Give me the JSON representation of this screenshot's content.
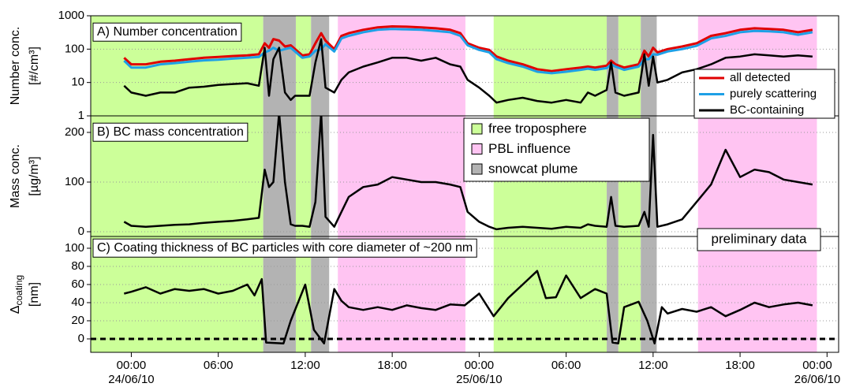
{
  "chart_data": {
    "type": "line",
    "grid": true,
    "xlim": [
      -2.8,
      48.8
    ],
    "xticks": [
      {
        "value": 0,
        "label": "00:00"
      },
      {
        "value": 6,
        "label": "06:00"
      },
      {
        "value": 12,
        "label": "12:00"
      },
      {
        "value": 18,
        "label": "18:00"
      },
      {
        "value": 24,
        "label": "00:00"
      },
      {
        "value": 30,
        "label": "06:00"
      },
      {
        "value": 36,
        "label": "12:00"
      },
      {
        "value": 42,
        "label": "18:00"
      },
      {
        "value": 48,
        "label": "00:00"
      }
    ],
    "date_labels": [
      {
        "value": 0,
        "label": "24/06/10"
      },
      {
        "value": 24,
        "label": "25/06/10"
      },
      {
        "value": 48,
        "label": "26/06/10"
      }
    ],
    "regions": [
      {
        "name": "free troposphere",
        "color": "#ccff99",
        "spans": [
          [
            -2.8,
            9.1
          ],
          [
            11.35,
            12.4
          ],
          [
            25.0,
            32.8
          ],
          [
            33.6,
            35.15
          ]
        ]
      },
      {
        "name": "PBL influence",
        "color": "#ffc4f2",
        "spans": [
          [
            14.25,
            23.05
          ],
          [
            39.1,
            47.3
          ]
        ]
      },
      {
        "name": "snowcat plume",
        "color": "#b3b3b3",
        "spans": [
          [
            9.1,
            11.35
          ],
          [
            12.4,
            13.65
          ],
          [
            32.8,
            33.6
          ],
          [
            35.15,
            36.25
          ]
        ]
      }
    ],
    "annotation": "preliminary data",
    "panels": [
      {
        "title": "A) Number concentration",
        "ylabel": {
          "text": "Number conc.",
          "unit": "[#/cm³]"
        },
        "log": true,
        "ylim": [
          1,
          1000
        ],
        "yticks": [
          1,
          10,
          100,
          1000
        ],
        "x": [
          -0.5,
          0,
          1,
          2,
          3,
          4,
          5,
          6,
          7,
          8,
          8.8,
          9.2,
          9.5,
          9.8,
          10.2,
          10.6,
          11,
          11.3,
          11.8,
          12.3,
          12.7,
          13.1,
          13.4,
          14,
          14.5,
          15,
          16,
          17,
          18,
          19,
          20,
          21,
          22,
          22.7,
          23.2,
          24,
          24.7,
          25.2,
          26,
          27,
          28,
          29,
          30,
          31,
          31.5,
          32,
          32.8,
          33.1,
          33.4,
          34,
          35,
          35.4,
          35.7,
          36,
          36.3,
          37,
          38,
          39,
          40,
          41,
          42,
          43,
          44,
          45,
          46,
          47
        ],
        "series": [
          {
            "name": "all detected",
            "color": "#e00000",
            "values": [
              55,
              35,
              35,
              42,
              45,
              50,
              55,
              58,
              62,
              65,
              70,
              150,
              110,
              200,
              180,
              120,
              130,
              100,
              65,
              70,
              150,
              300,
              180,
              100,
              250,
              300,
              380,
              450,
              480,
              470,
              450,
              420,
              380,
              300,
              150,
              110,
              95,
              60,
              45,
              35,
              25,
              22,
              25,
              28,
              30,
              28,
              32,
              45,
              35,
              28,
              35,
              90,
              60,
              110,
              80,
              100,
              120,
              150,
              250,
              300,
              380,
              420,
              400,
              380,
              320,
              380
            ]
          },
          {
            "name": "purely scattering",
            "color": "#1ea0e6",
            "values": [
              45,
              28,
              28,
              35,
              38,
              42,
              46,
              48,
              52,
              55,
              58,
              80,
              90,
              110,
              90,
              100,
              110,
              85,
              55,
              60,
              90,
              100,
              140,
              85,
              210,
              250,
              320,
              380,
              400,
              390,
              380,
              350,
              320,
              250,
              130,
              95,
              80,
              50,
              38,
              30,
              21,
              19,
              21,
              24,
              26,
              24,
              27,
              35,
              30,
              24,
              30,
              50,
              50,
              70,
              68,
              85,
              100,
              125,
              210,
              250,
              320,
              350,
              340,
              320,
              270,
              320
            ]
          },
          {
            "name": "BC-containing",
            "color": "#000000",
            "values": [
              8,
              5,
              4,
              5,
              5,
              7,
              7.5,
              8.5,
              9,
              9.5,
              8,
              110,
              4,
              50,
              110,
              5,
              3,
              4,
              4,
              4,
              40,
              200,
              7,
              5,
              12,
              20,
              30,
              40,
              55,
              55,
              45,
              55,
              35,
              30,
              12,
              7,
              4,
              2.5,
              3,
              3.5,
              2.8,
              2.5,
              3,
              2.5,
              5,
              4,
              6,
              40,
              5,
              4,
              5,
              70,
              8,
              60,
              10,
              12,
              20,
              25,
              35,
              55,
              60,
              70,
              65,
              60,
              65,
              60
            ]
          }
        ]
      },
      {
        "title": "B) BC mass concentration",
        "ylabel": {
          "text": "Mass conc.",
          "unit": "[µg/m³]"
        },
        "log": false,
        "ylim": [
          -9.5,
          233.3
        ],
        "yticks": [
          0,
          100,
          200
        ],
        "x": [
          -0.5,
          0,
          1,
          2,
          3,
          4,
          5,
          6,
          7,
          8,
          8.8,
          9.2,
          9.5,
          9.8,
          10.2,
          10.6,
          11,
          11.3,
          11.8,
          12.3,
          12.7,
          13.1,
          13.4,
          14,
          14.5,
          15,
          16,
          17,
          18,
          19,
          20,
          21,
          22,
          22.7,
          23.2,
          24,
          24.7,
          25.2,
          26,
          27,
          28,
          29,
          30,
          31,
          31.5,
          32,
          32.8,
          33.1,
          33.4,
          34,
          35,
          35.4,
          35.7,
          36,
          36.3,
          37,
          38,
          39,
          40,
          41,
          42,
          43,
          44,
          45,
          46,
          47
        ],
        "series": [
          {
            "name": "BC-containing",
            "color": "#000000",
            "values": [
              20,
              12,
              10,
              12,
              14,
              15,
              18,
              20,
              22,
              25,
              28,
              125,
              90,
              100,
              240,
              100,
              15,
              12,
              12,
              10,
              60,
              240,
              30,
              10,
              40,
              70,
              90,
              95,
              110,
              105,
              100,
              100,
              95,
              90,
              40,
              20,
              10,
              5,
              8,
              10,
              8,
              6,
              10,
              8,
              15,
              12,
              10,
              70,
              12,
              10,
              12,
              40,
              10,
              195,
              10,
              15,
              25,
              60,
              95,
              165,
              110,
              125,
              120,
              105,
              100,
              95
            ]
          }
        ]
      },
      {
        "title": "C) Coating thickness of BC particles with core diameter of ~200 nm",
        "ylabel": {
          "text": "Δ",
          "sub": "coating",
          "unit": "[nm]"
        },
        "log": false,
        "ylim": [
          -14.8,
          113
        ],
        "yticks": [
          0,
          20,
          40,
          60,
          80,
          100
        ],
        "reference_line": 0,
        "x": [
          -0.5,
          0,
          1,
          2,
          3,
          4,
          5,
          6,
          7,
          8,
          8.5,
          9,
          9.3,
          10.5,
          11,
          12,
          12.6,
          13.3,
          14,
          14.5,
          15,
          16,
          17,
          18,
          19,
          20,
          21,
          22,
          23,
          24,
          25,
          26,
          27,
          28,
          28.6,
          29.3,
          30,
          31,
          32,
          32.8,
          33.2,
          33.6,
          34,
          35,
          35.6,
          36.1,
          36.6,
          37,
          38,
          39,
          40,
          41,
          42,
          43,
          44,
          45,
          46,
          47
        ],
        "series": [
          {
            "name": "BC-containing",
            "color": "#000000",
            "values": [
              50,
              52,
              57,
              50,
              55,
              53,
              55,
              50,
              53,
              60,
              48,
              66,
              -4,
              -5,
              20,
              60,
              10,
              -5,
              55,
              42,
              35,
              32,
              35,
              32,
              37,
              34,
              32,
              38,
              37,
              50,
              25,
              45,
              60,
              75,
              45,
              46,
              70,
              45,
              55,
              50,
              -4,
              -5,
              35,
              41,
              20,
              -5,
              35,
              28,
              33,
              30,
              35,
              25,
              32,
              40,
              35,
              38,
              40,
              37
            ]
          }
        ]
      }
    ]
  }
}
